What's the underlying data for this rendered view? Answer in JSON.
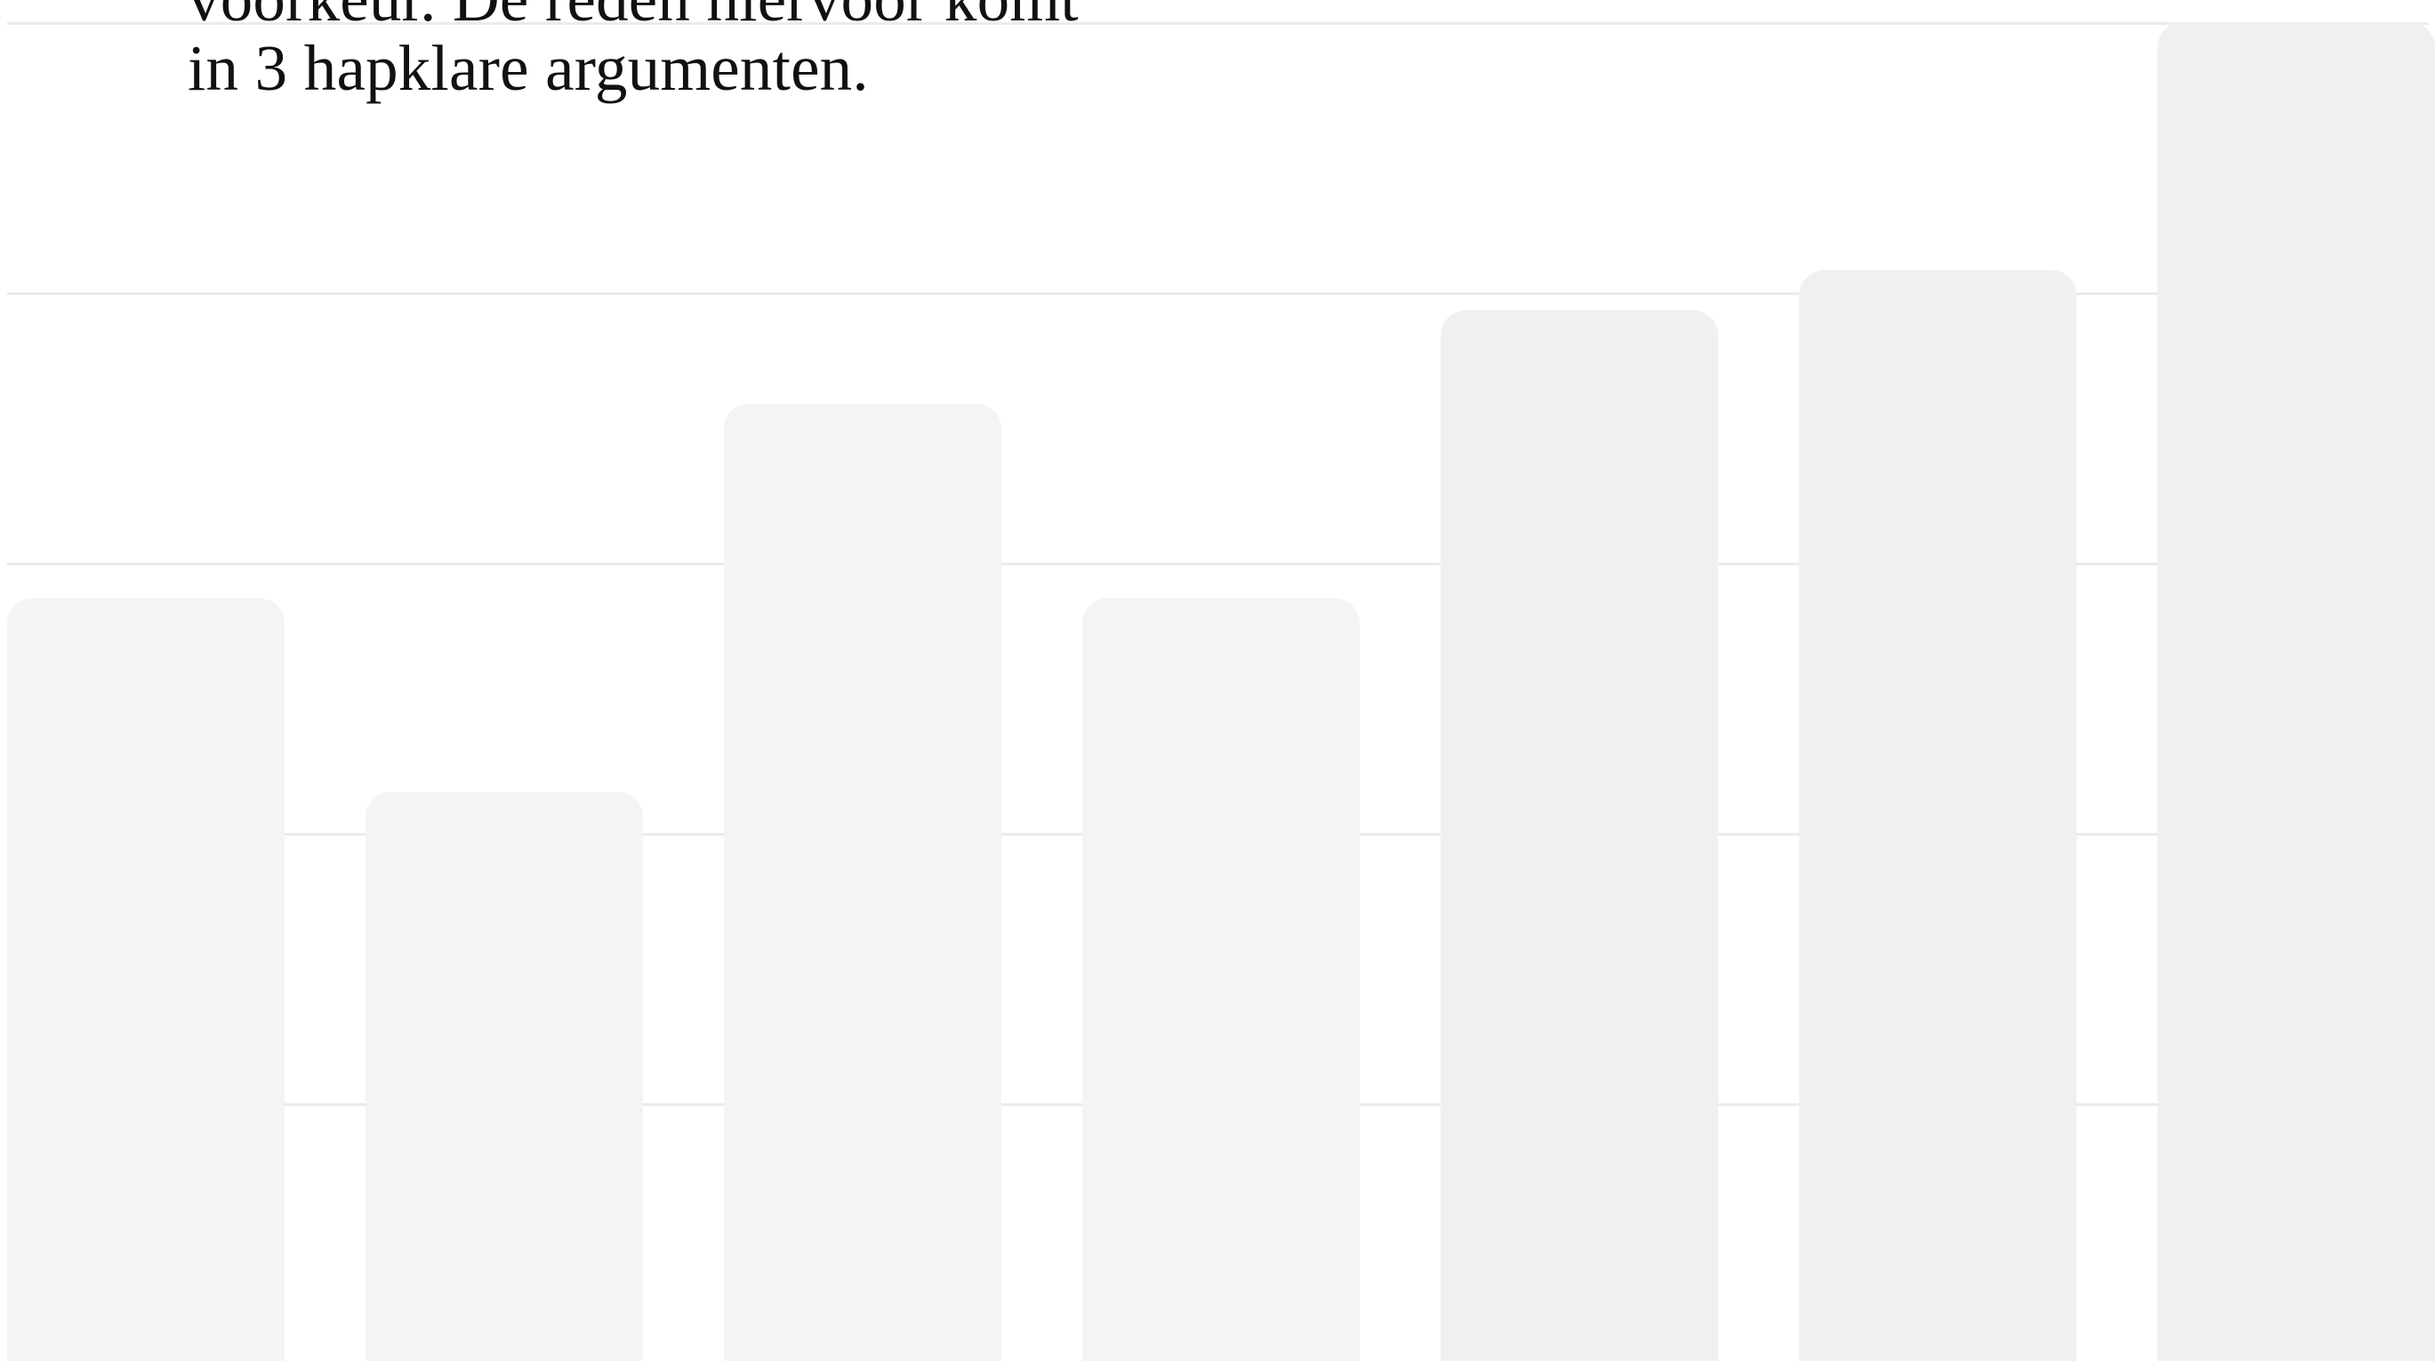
{
  "intro": {
    "lines": [
      "voorkeur. De reden hiervoor komt",
      "in 3 hapklare argumenten."
    ]
  },
  "decor_chart": {
    "gridlines": 5,
    "bars": [
      {
        "level": 0.57,
        "color": "#f4f4f4"
      },
      {
        "level": 0.425,
        "color": "#f4f4f4"
      },
      {
        "level": 0.715,
        "color": "#f4f4f4"
      },
      {
        "level": 0.57,
        "color": "#f4f4f4"
      },
      {
        "level": 0.785,
        "color": "#f0f0f0"
      },
      {
        "level": 0.815,
        "color": "#f0f0f0"
      },
      {
        "level": 1.0,
        "color": "#f0f0f0"
      }
    ]
  },
  "colors": {
    "background": "#ffffff",
    "gridline": "#ebebeb",
    "text": "#111111"
  }
}
